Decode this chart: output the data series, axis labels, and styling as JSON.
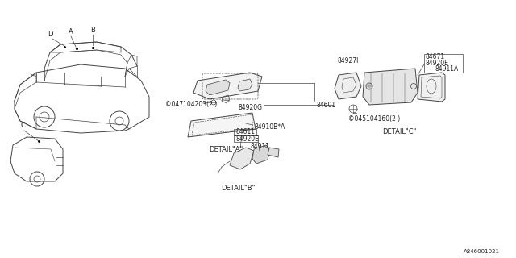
{
  "bg_color": "#ffffff",
  "line_color": "#444444",
  "text_color": "#222222",
  "diagram_number": "A846001021",
  "labels": {
    "detail_a": "DETAIL\"A\"",
    "detail_b": "DETAIL\"B\"",
    "detail_c": "DETAIL\"C\"",
    "part_84601": "84601",
    "part_84920G": "84920G",
    "part_84910B": "84910B*A",
    "part_047104203": "©047104203(2 )",
    "part_84611": "84611",
    "part_84920E_b": "84920E",
    "part_84911_b": "84911",
    "part_84927I": "84927I",
    "part_84671": "84671",
    "part_84920E_c": "84920E",
    "part_84911A": "84911A",
    "part_045104160": "©045104160(2 )",
    "label_A": "A",
    "label_B": "B",
    "label_C": "C",
    "label_D": "D"
  },
  "font_size_parts": 5.5,
  "font_size_detail": 6.0,
  "font_size_label": 6.0,
  "font_size_diagram_num": 5.0
}
